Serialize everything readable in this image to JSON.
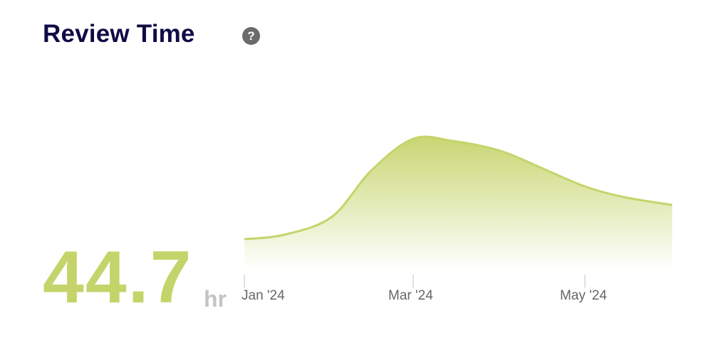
{
  "header": {
    "title": "Review Time",
    "help_icon": "question-circle-icon"
  },
  "metric": {
    "value": "44.7",
    "unit": "hr"
  },
  "chart_data": {
    "type": "area",
    "x": [
      "2024-01-01",
      "2024-01-15",
      "2024-02-01",
      "2024-02-15",
      "2024-03-01",
      "2024-03-15",
      "2024-04-01",
      "2024-04-15",
      "2024-05-01",
      "2024-05-15",
      "2024-06-01"
    ],
    "values": [
      44,
      50,
      75,
      140,
      185,
      182,
      168,
      145,
      118,
      103,
      92
    ],
    "x_ticks": [
      {
        "date": "2024-01-01",
        "label": "Jan '24"
      },
      {
        "date": "2024-03-01",
        "label": "Mar '24"
      },
      {
        "date": "2024-05-01",
        "label": "May '24"
      }
    ],
    "title": "",
    "xlabel": "",
    "ylabel": "",
    "grid": false,
    "legend": "none",
    "colors": {
      "line": "#c5d46a",
      "fill": "#c5d46a"
    }
  }
}
